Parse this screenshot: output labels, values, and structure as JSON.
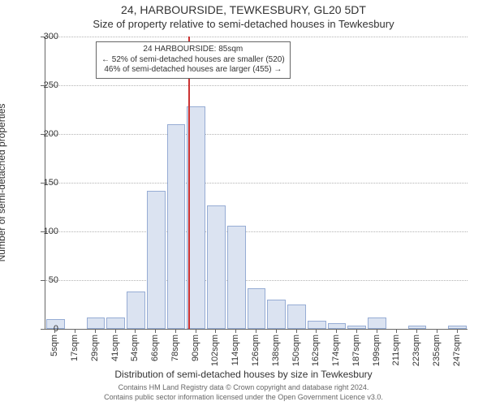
{
  "titles": {
    "main": "24, HARBOURSIDE, TEWKESBURY, GL20 5DT",
    "sub": "Size of property relative to semi-detached houses in Tewkesbury",
    "xaxis": "Distribution of semi-detached houses by size in Tewkesbury",
    "yaxis": "Number of semi-detached properties"
  },
  "footer": {
    "line1": "Contains HM Land Registry data © Crown copyright and database right 2024.",
    "line2": "Contains public sector information licensed under the Open Government Licence v3.0."
  },
  "annotation": {
    "line1": "24 HARBOURSIDE: 85sqm",
    "line2": "← 52% of semi-detached houses are smaller (520)",
    "line3": "46% of semi-detached houses are larger (455) →"
  },
  "chart": {
    "type": "histogram",
    "ylim": [
      0,
      300
    ],
    "ytick_step": 50,
    "marker_value": 85,
    "marker_color": "#cc3333",
    "bar_fill": "#dbe3f1",
    "bar_stroke": "#96acd4",
    "grid_color": "#b3b3b3",
    "axis_color": "#666666",
    "background_color": "#ffffff",
    "xtick_label_suffix": "sqm",
    "bins": [
      {
        "label": 5,
        "value": 10
      },
      {
        "label": 17,
        "value": 0
      },
      {
        "label": 29,
        "value": 12
      },
      {
        "label": 41,
        "value": 12
      },
      {
        "label": 54,
        "value": 38
      },
      {
        "label": 66,
        "value": 142
      },
      {
        "label": 78,
        "value": 210
      },
      {
        "label": 90,
        "value": 228
      },
      {
        "label": 102,
        "value": 127
      },
      {
        "label": 114,
        "value": 106
      },
      {
        "label": 126,
        "value": 42
      },
      {
        "label": 138,
        "value": 30
      },
      {
        "label": 150,
        "value": 25
      },
      {
        "label": 162,
        "value": 8
      },
      {
        "label": 174,
        "value": 6
      },
      {
        "label": 187,
        "value": 3
      },
      {
        "label": 199,
        "value": 12
      },
      {
        "label": 211,
        "value": 0
      },
      {
        "label": 223,
        "value": 3
      },
      {
        "label": 235,
        "value": 0
      },
      {
        "label": 247,
        "value": 3
      }
    ]
  }
}
